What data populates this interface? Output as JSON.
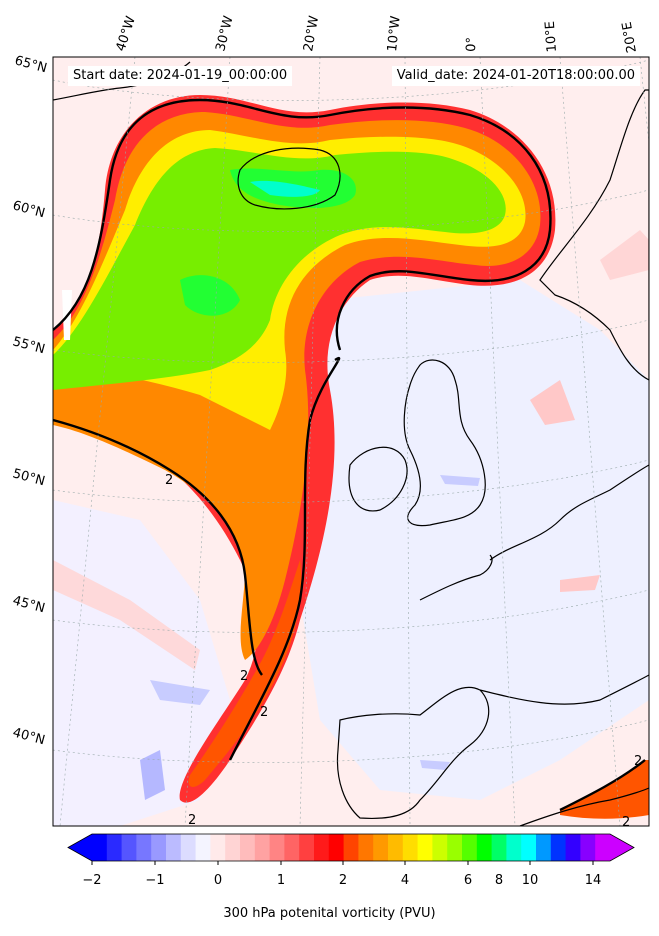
{
  "header": {
    "start_date": "Start date: 2024-01-19_00:00:00",
    "valid_date": "Valid_date: 2024-01-20T18:00:00.00"
  },
  "graticule": {
    "lon_labels": [
      "40°W",
      "30°W",
      "20°W",
      "10°W",
      "0°",
      "10°E",
      "20°E"
    ],
    "lat_labels": [
      "65°N",
      "60°N",
      "55°N",
      "50°N",
      "45°N",
      "40°N"
    ]
  },
  "contour_labels": [
    "2",
    "2",
    "2",
    "2",
    "2",
    "2"
  ],
  "colorbar": {
    "title": "300 hPa potenital vorticity (PVU)",
    "ticks": [
      "−2",
      "−1",
      "0",
      "1",
      "2",
      "4",
      "6",
      "8",
      "10",
      "14"
    ],
    "colors": [
      "#0000ff",
      "#2a2aff",
      "#5555ff",
      "#7777ff",
      "#9999ff",
      "#bbbbff",
      "#dcdcff",
      "#f4f4ff",
      "#ffeaea",
      "#ffd4d4",
      "#ffbcbc",
      "#ffa2a2",
      "#ff8484",
      "#ff6464",
      "#ff4040",
      "#ff1a1a",
      "#ff0000",
      "#ff4400",
      "#ff7700",
      "#ff9900",
      "#ffbb00",
      "#ffdd00",
      "#ffff00",
      "#ccff00",
      "#99ff00",
      "#55ff00",
      "#00ff00",
      "#00ff66",
      "#00ffcc",
      "#00ffff",
      "#0099ff",
      "#0033ff",
      "#3300ff",
      "#8800ff",
      "#cc00ff"
    ]
  },
  "colors": {
    "background_field": "#ffeeee",
    "low_pv": "#eef0ff",
    "contour": "#000000"
  }
}
